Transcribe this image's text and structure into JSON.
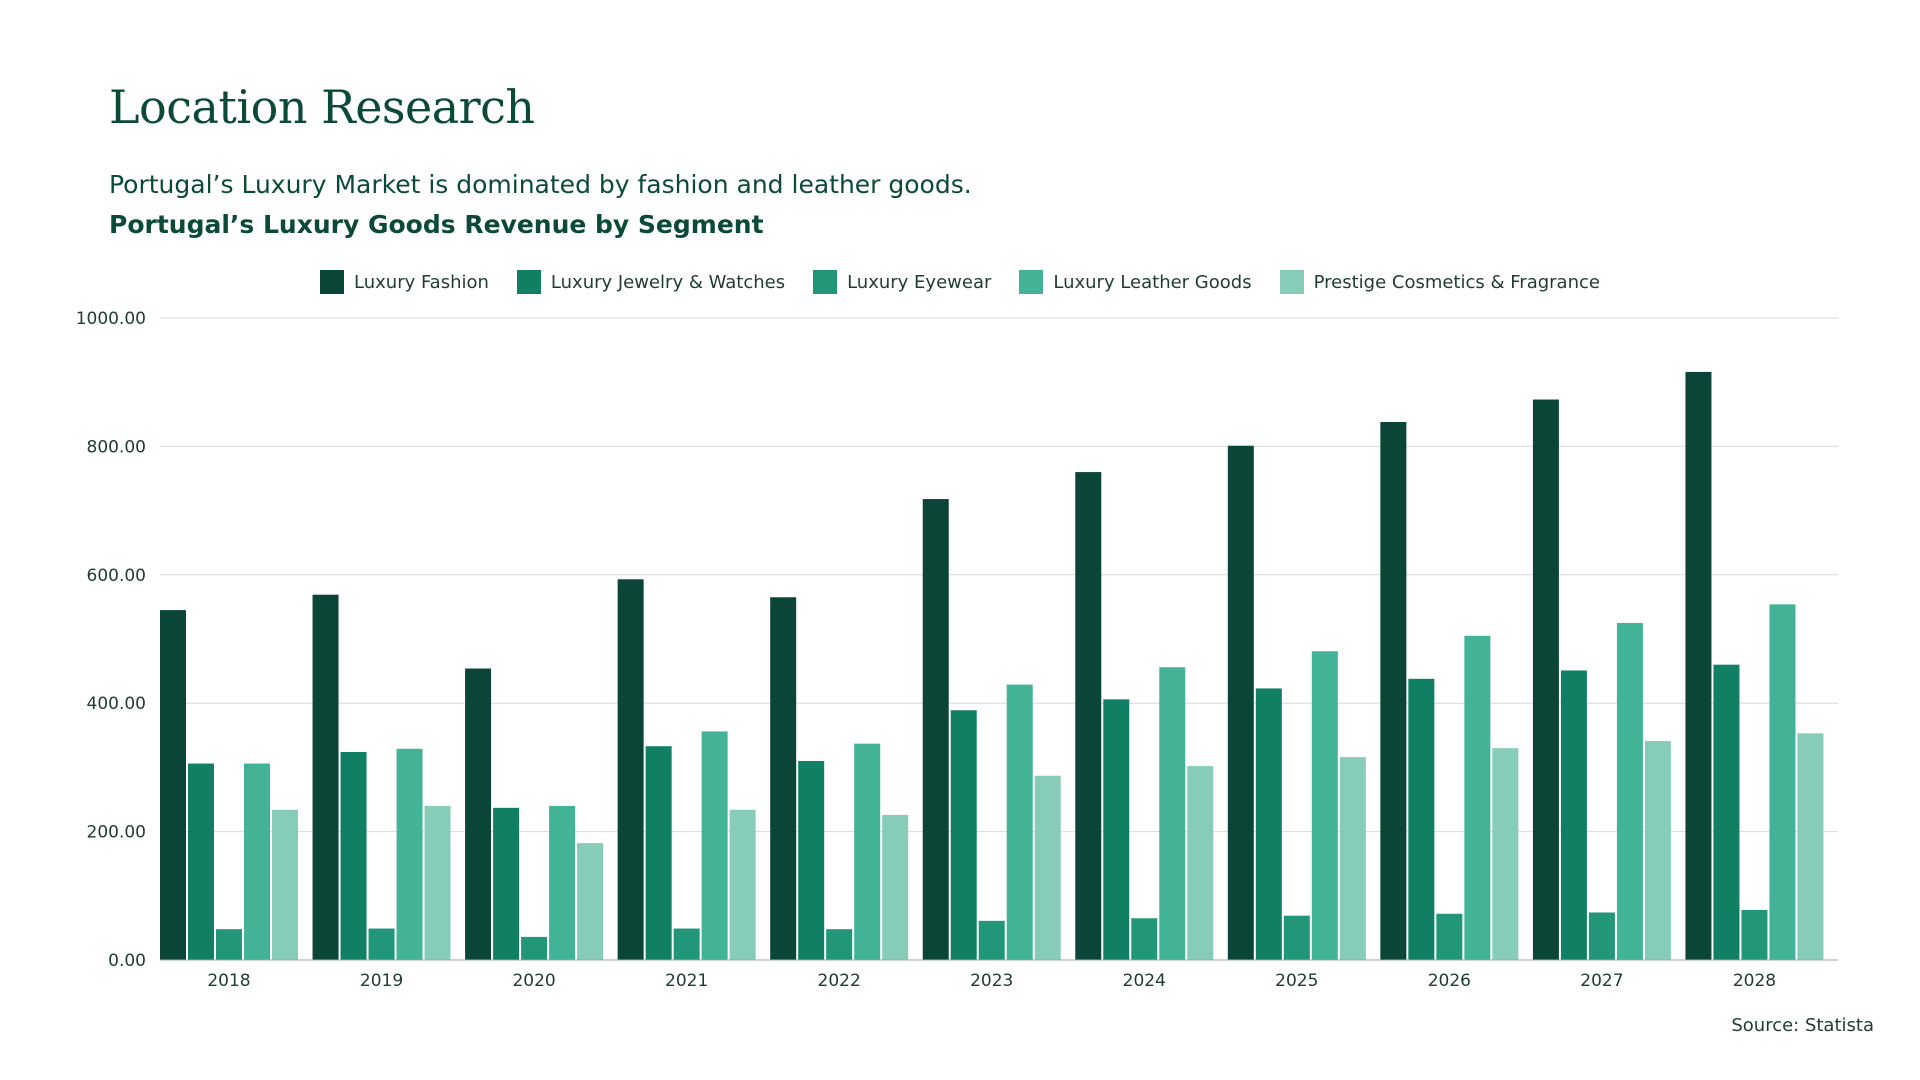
{
  "header": {
    "title": "Location Research",
    "subtitle": "Portugal’s Luxury Market is dominated by fashion and leather goods."
  },
  "source": "Source: Statista",
  "colors": {
    "text": "#0b4a38",
    "grid": "#d9d9d9"
  },
  "chart_data": {
    "type": "bar",
    "title": "Portugal’s Luxury Goods Revenue by Segment",
    "xlabel": "",
    "ylabel": "",
    "ylim": [
      0,
      1000
    ],
    "yticks": [
      "0.00",
      "200.00",
      "400.00",
      "600.00",
      "800.00",
      "1000.00"
    ],
    "grid": true,
    "legend_position": "top-center",
    "categories": [
      "2018",
      "2019",
      "2020",
      "2021",
      "2022",
      "2023",
      "2024",
      "2025",
      "2026",
      "2027",
      "2028"
    ],
    "series": [
      {
        "name": "Luxury Fashion",
        "color": "#0a4538",
        "values": [
          545,
          569,
          454,
          593,
          565,
          718,
          760,
          801,
          838,
          873,
          916
        ]
      },
      {
        "name": "Luxury Jewelry & Watches",
        "color": "#107f64",
        "values": [
          306,
          324,
          237,
          333,
          310,
          389,
          406,
          423,
          438,
          451,
          460
        ]
      },
      {
        "name": "Luxury Eyewear",
        "color": "#219679",
        "values": [
          48,
          49,
          36,
          49,
          48,
          61,
          65,
          69,
          72,
          74,
          78
        ]
      },
      {
        "name": "Luxury Leather Goods",
        "color": "#42b396",
        "values": [
          306,
          329,
          240,
          356,
          337,
          429,
          456,
          481,
          505,
          525,
          554
        ]
      },
      {
        "name": "Prestige Cosmetics & Fragrance",
        "color": "#86ccb8",
        "values": [
          234,
          240,
          182,
          234,
          226,
          287,
          302,
          316,
          330,
          341,
          353
        ]
      }
    ]
  }
}
